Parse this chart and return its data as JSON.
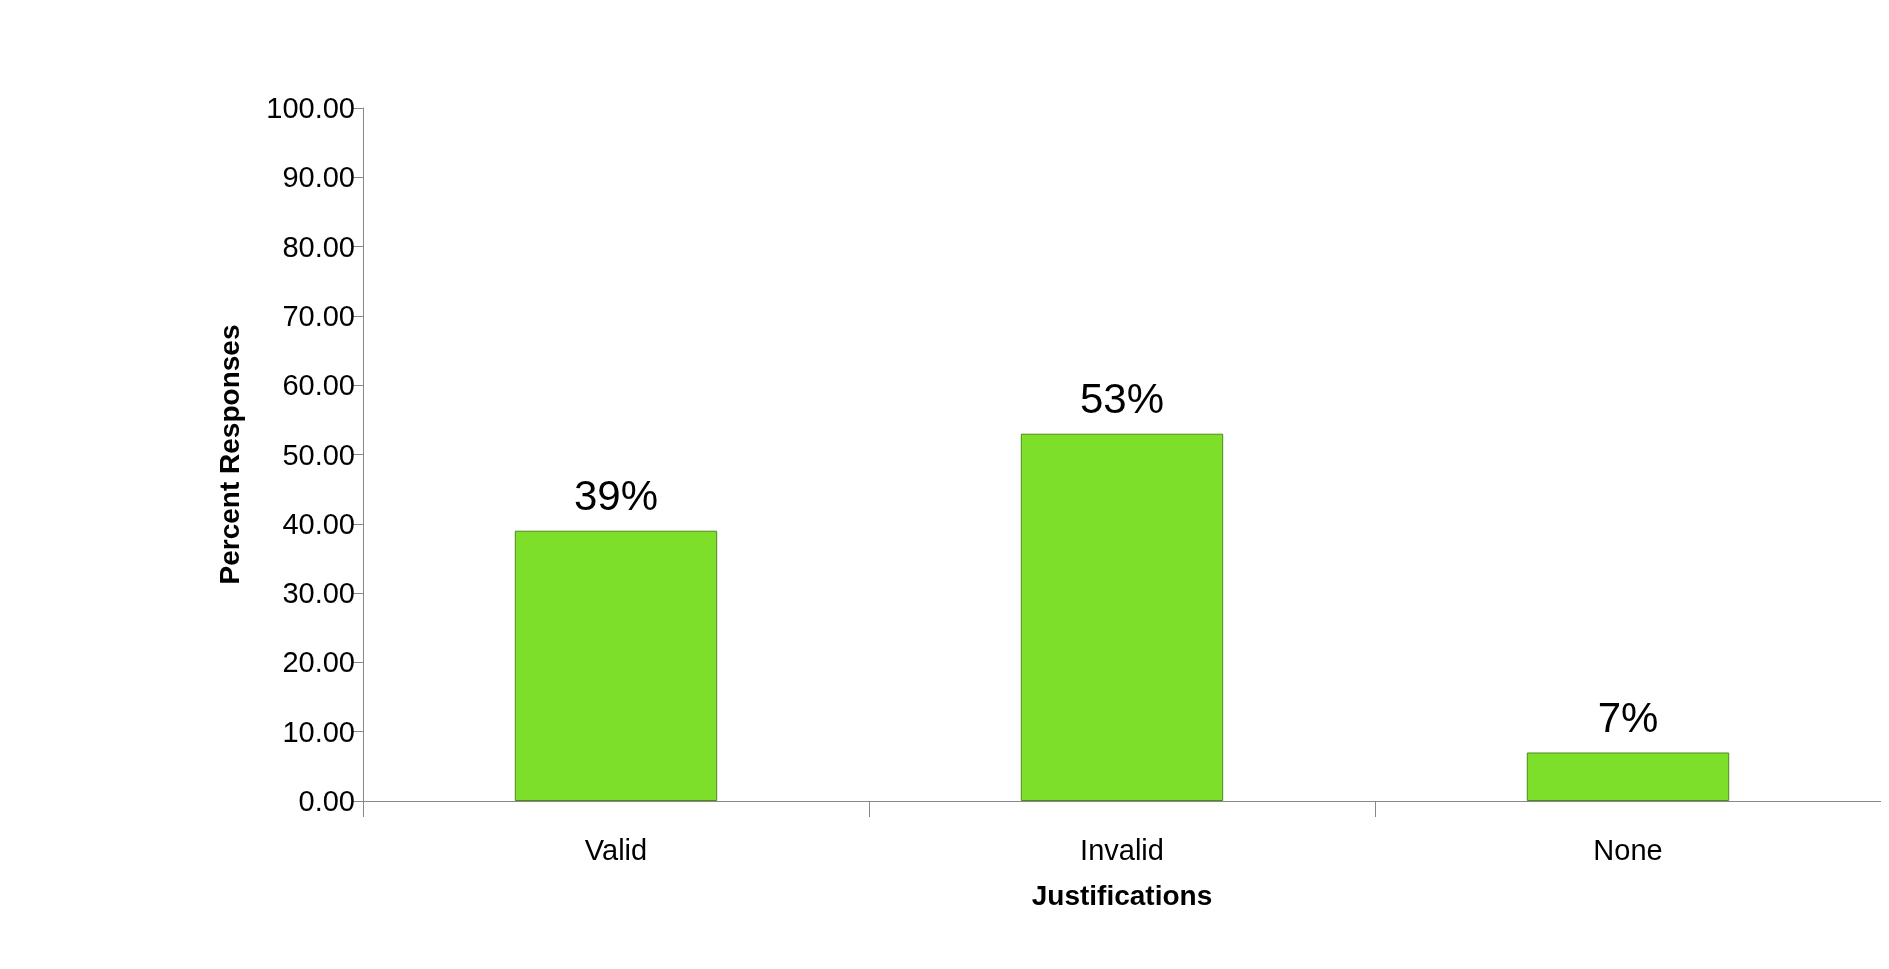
{
  "chart_data": {
    "type": "bar",
    "xlabel": "Justifications",
    "ylabel": "Percent Responses",
    "categories": [
      "Valid",
      "Invalid",
      "None"
    ],
    "values": [
      39,
      53,
      7
    ],
    "value_labels": [
      "39%",
      "53%",
      "7%"
    ],
    "color": "#7ddf2a",
    "yticks": [
      {
        "value": 0,
        "label": "0.00"
      },
      {
        "value": 10,
        "label": "10.00"
      },
      {
        "value": 20,
        "label": "20.00"
      },
      {
        "value": 30,
        "label": "30.00"
      },
      {
        "value": 40,
        "label": "40.00"
      },
      {
        "value": 50,
        "label": "50.00"
      },
      {
        "value": 60,
        "label": "60.00"
      },
      {
        "value": 70,
        "label": "70.00"
      },
      {
        "value": 80,
        "label": "80.00"
      },
      {
        "value": 90,
        "label": "90.00"
      },
      {
        "value": 100,
        "label": "100.00"
      }
    ],
    "ylim": [
      0,
      100
    ]
  }
}
